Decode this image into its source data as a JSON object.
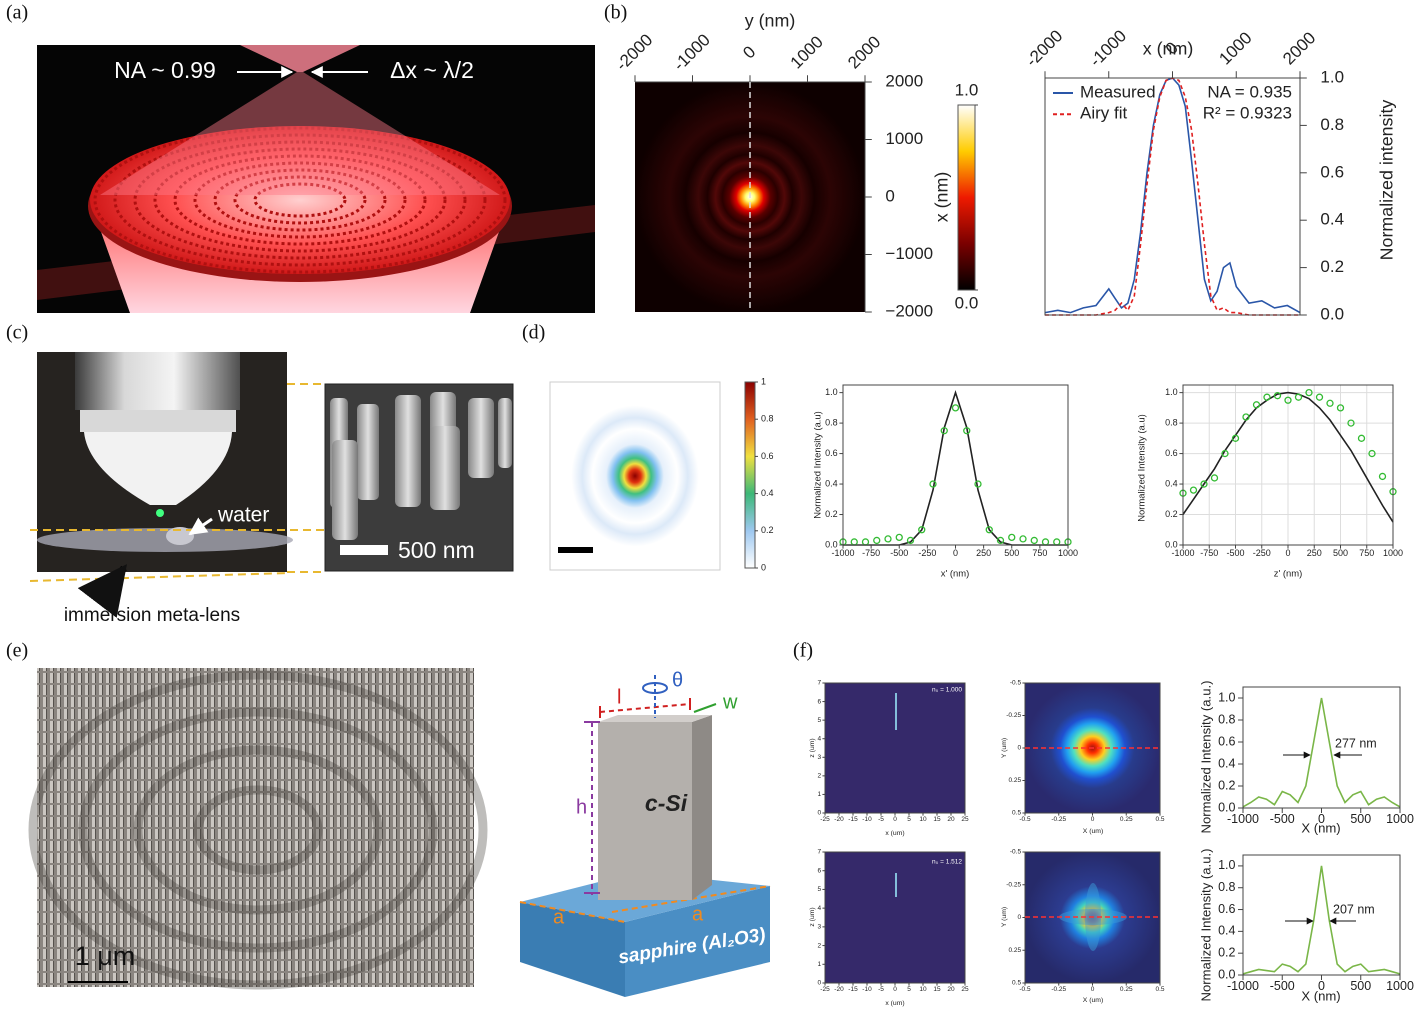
{
  "panel_labels": [
    "(a)",
    "(b)",
    "(c)",
    "(d)",
    "(e)",
    "(f)"
  ],
  "panel_a": {
    "na": "NA ~ 0.99",
    "dx": "Δx ~ λ/2"
  },
  "panel_c": {
    "water": "water",
    "scale": "500 nm",
    "lens": "immersion meta-lens"
  },
  "panel_e": {
    "scale": "1 μm",
    "theta": "θ",
    "l": "l",
    "w": "w",
    "h": "h",
    "a": [
      "a",
      "a"
    ],
    "pillar": "c-Si",
    "substrate": "sapphire (Al₂O3)"
  },
  "chart_data": [
    {
      "type": "heatmap",
      "xlabel": "y (nm)",
      "ylabel": "x (nm)",
      "xlim": [
        -2000,
        2000
      ],
      "ylim": [
        -2000,
        2000
      ],
      "xticks": [
        -2000,
        -1000,
        0,
        1000,
        2000
      ],
      "yticks": [
        {
          "value": -2000,
          "label": "−2000"
        },
        {
          "value": -1000,
          "label": "−1000"
        },
        0,
        1000,
        2000
      ],
      "clim": [
        0,
        1
      ],
      "cticks": [
        {
          "value": 0,
          "label": "0.0"
        },
        {
          "value": 1,
          "label": "1.0"
        }
      ],
      "colormap": [
        "#000000",
        "#7a0000",
        "#ee1a00",
        "#ffcc00",
        "#ffffff"
      ]
    },
    {
      "type": "line",
      "xlabel": "x (nm)",
      "ylabel": "Normalized intensity",
      "xlim": [
        -2000,
        2000
      ],
      "ylim": [
        0,
        1
      ],
      "xticks": [
        -2000,
        -1000,
        0,
        1000,
        2000
      ],
      "yticks": [
        {
          "value": 0,
          "label": "0.0"
        },
        0.2,
        0.4,
        0.6,
        0.8,
        {
          "value": 1,
          "label": "1.0"
        }
      ],
      "legend": "upper left",
      "annotations": [
        "NA = 0.935",
        "R² = 0.9323"
      ],
      "x": [
        -2000,
        -1800,
        -1600,
        -1400,
        -1200,
        -1000,
        -900,
        -800,
        -700,
        -600,
        -500,
        -400,
        -300,
        -200,
        -100,
        0,
        100,
        200,
        300,
        400,
        500,
        600,
        700,
        800,
        900,
        1000,
        1200,
        1400,
        1600,
        1800,
        2000
      ],
      "series": [
        {
          "name": "Measured",
          "color": "#2a56a8",
          "linestyle": "solid",
          "values": [
            0.01,
            0.02,
            0.01,
            0.03,
            0.04,
            0.11,
            0.07,
            0.03,
            0.05,
            0.15,
            0.35,
            0.6,
            0.8,
            0.93,
            0.99,
            1.0,
            0.97,
            0.88,
            0.65,
            0.4,
            0.15,
            0.06,
            0.1,
            0.2,
            0.22,
            0.12,
            0.05,
            0.06,
            0.03,
            0.04,
            0.01
          ]
        },
        {
          "name": "Airy fit",
          "color": "#e02020",
          "linestyle": "dashed",
          "values": [
            0,
            0,
            0,
            0,
            0,
            0.01,
            0.02,
            0.05,
            0.02,
            0.08,
            0.3,
            0.55,
            0.78,
            0.92,
            0.99,
            1.0,
            0.99,
            0.92,
            0.78,
            0.55,
            0.3,
            0.08,
            0.02,
            0.03,
            0.01,
            0.01,
            0,
            0,
            0,
            0,
            0
          ]
        }
      ]
    },
    {
      "type": "heatmap",
      "clim": [
        0,
        1
      ],
      "cticks": [
        0,
        0.2,
        0.4,
        0.6,
        0.8,
        1
      ],
      "colormap": [
        "#ffffff",
        "#9ec8f0",
        "#3cb878",
        "#f0e040",
        "#e06020",
        "#8b0000"
      ]
    },
    {
      "type": "line",
      "xlabel": "x' (nm)",
      "ylabel": "Normalized Intensity (a.u)",
      "xlim": [
        -1000,
        1000
      ],
      "ylim": [
        0,
        1.05
      ],
      "xticks": [
        -1000,
        -750,
        -500,
        -250,
        0,
        250,
        500,
        750,
        1000
      ],
      "yticks": [
        {
          "value": 0,
          "label": "0.0"
        },
        0.2,
        0.4,
        0.6,
        0.8,
        {
          "value": 1,
          "label": "1.0"
        }
      ],
      "x": [
        -1000,
        -900,
        -800,
        -700,
        -600,
        -500,
        -400,
        -300,
        -200,
        -100,
        0,
        100,
        200,
        300,
        400,
        500,
        600,
        700,
        800,
        900,
        1000
      ],
      "series": [
        {
          "color": "#222222",
          "values": [
            0,
            0,
            0,
            0,
            0,
            0,
            0.02,
            0.1,
            0.36,
            0.77,
            1.0,
            0.77,
            0.36,
            0.1,
            0.02,
            0,
            0,
            0,
            0,
            0,
            0
          ]
        },
        {
          "color": "#33bb33",
          "marker": "circle",
          "values": [
            0.02,
            0.02,
            0.02,
            0.03,
            0.04,
            0.05,
            0.03,
            0.1,
            0.4,
            0.75,
            0.9,
            0.75,
            0.4,
            0.1,
            0.03,
            0.05,
            0.04,
            0.03,
            0.02,
            0.02,
            0.02
          ]
        }
      ]
    },
    {
      "type": "line",
      "xlabel": "z' (nm)",
      "ylabel": "Normalized Intensity (a.u)",
      "xlim": [
        -1000,
        1000
      ],
      "ylim": [
        0,
        1.05
      ],
      "grid": true,
      "xticks": [
        -1000,
        -750,
        -500,
        -250,
        0,
        250,
        500,
        750,
        1000
      ],
      "yticks": [
        {
          "value": 0,
          "label": "0.0"
        },
        0.2,
        0.4,
        0.6,
        0.8,
        {
          "value": 1,
          "label": "1.0"
        }
      ],
      "x": [
        -1000,
        -900,
        -800,
        -700,
        -600,
        -500,
        -400,
        -300,
        -200,
        -100,
        0,
        100,
        200,
        300,
        400,
        500,
        600,
        700,
        800,
        900,
        1000
      ],
      "series": [
        {
          "color": "#222222",
          "values": [
            0.2,
            0.3,
            0.4,
            0.5,
            0.62,
            0.72,
            0.82,
            0.9,
            0.95,
            0.99,
            1.0,
            0.99,
            0.96,
            0.9,
            0.82,
            0.72,
            0.62,
            0.5,
            0.38,
            0.26,
            0.15
          ]
        },
        {
          "color": "#33bb33",
          "marker": "circle",
          "values": [
            0.34,
            0.36,
            0.4,
            0.44,
            0.6,
            0.7,
            0.84,
            0.92,
            0.97,
            0.98,
            0.95,
            0.97,
            1.0,
            0.97,
            0.93,
            0.9,
            0.8,
            0.7,
            0.6,
            0.45,
            0.35
          ]
        }
      ]
    },
    {
      "type": "heatmap",
      "xlabel": "x (um)",
      "ylabel": "z (um)",
      "xlim": [
        -25,
        25
      ],
      "ylim": [
        0,
        7
      ],
      "xticks": [
        -25,
        -20,
        -15,
        -10,
        -5,
        0,
        5,
        10,
        15,
        20,
        25
      ],
      "yticks": [
        0,
        1,
        2,
        3,
        4,
        5,
        6,
        7
      ],
      "annotations": [
        "n₀ = 1.000"
      ]
    },
    {
      "type": "heatmap",
      "xlabel": "X (um)",
      "ylabel": "Y (um)",
      "xlim": [
        -0.5,
        0.5
      ],
      "ylim": [
        0.5,
        -0.5
      ],
      "xticks": [
        -0.5,
        -0.25,
        0,
        0.25,
        0.5
      ],
      "yticks": [
        -0.5,
        -0.25,
        0,
        0.25,
        0.5
      ]
    },
    {
      "type": "line",
      "xlabel": "X (nm)",
      "ylabel": "Normalized Intensity (a.u.)",
      "xlim": [
        -1000,
        1000
      ],
      "ylim": [
        0,
        1.1
      ],
      "xticks": [
        -1000,
        -500,
        0,
        500,
        1000
      ],
      "yticks": [
        {
          "value": 0,
          "label": "0.0"
        },
        0.2,
        0.4,
        0.6,
        0.8,
        {
          "value": 1,
          "label": "1.0"
        }
      ],
      "annotations": [
        "277 nm"
      ],
      "x": [
        -1000,
        -900,
        -800,
        -700,
        -600,
        -500,
        -400,
        -300,
        -200,
        -100,
        0,
        100,
        200,
        300,
        400,
        500,
        600,
        700,
        800,
        900,
        1000
      ],
      "series": [
        {
          "color": "#7ab648",
          "values": [
            0.01,
            0.05,
            0.1,
            0.08,
            0.03,
            0.15,
            0.12,
            0.05,
            0.2,
            0.6,
            1.0,
            0.6,
            0.2,
            0.05,
            0.12,
            0.15,
            0.03,
            0.08,
            0.1,
            0.05,
            0.01
          ]
        }
      ]
    },
    {
      "type": "heatmap",
      "xlabel": "x (um)",
      "ylabel": "z (um)",
      "xlim": [
        -25,
        25
      ],
      "ylim": [
        0,
        7
      ],
      "xticks": [
        -25,
        -20,
        -15,
        -10,
        -5,
        0,
        5,
        10,
        15,
        20,
        25
      ],
      "yticks": [
        0,
        1,
        2,
        3,
        4,
        5,
        6,
        7
      ],
      "annotations": [
        "n₀ = 1.512"
      ]
    },
    {
      "type": "heatmap",
      "xlabel": "X (um)",
      "ylabel": "Y (um)",
      "xlim": [
        -0.5,
        0.5
      ],
      "ylim": [
        0.5,
        -0.5
      ],
      "xticks": [
        -0.5,
        -0.25,
        0,
        0.25,
        0.5
      ],
      "yticks": [
        -0.5,
        -0.25,
        0,
        0.25,
        0.5
      ]
    },
    {
      "type": "line",
      "xlabel": "X (nm)",
      "ylabel": "Normalized Intensity (a.u.)",
      "xlim": [
        -1000,
        1000
      ],
      "ylim": [
        0,
        1.1
      ],
      "xticks": [
        -1000,
        -500,
        0,
        500,
        1000
      ],
      "yticks": [
        {
          "value": 0,
          "label": "0.0"
        },
        0.2,
        0.4,
        0.6,
        0.8,
        {
          "value": 1,
          "label": "1.0"
        }
      ],
      "annotations": [
        "207 nm"
      ],
      "x": [
        -1000,
        -900,
        -800,
        -700,
        -600,
        -500,
        -400,
        -300,
        -200,
        -100,
        0,
        100,
        200,
        300,
        400,
        500,
        600,
        700,
        800,
        900,
        1000
      ],
      "series": [
        {
          "color": "#7ab648",
          "values": [
            0.01,
            0.03,
            0.05,
            0.04,
            0.03,
            0.1,
            0.08,
            0.03,
            0.1,
            0.5,
            1.0,
            0.5,
            0.1,
            0.03,
            0.08,
            0.1,
            0.03,
            0.04,
            0.05,
            0.03,
            0.01
          ]
        }
      ]
    }
  ]
}
